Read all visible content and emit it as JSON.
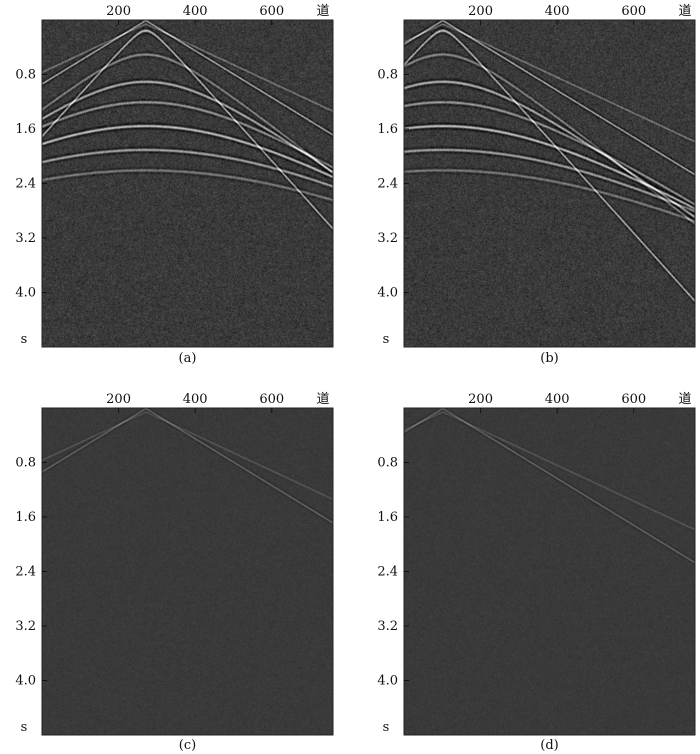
{
  "chart_data": [
    {
      "type": "heatmap",
      "panel_label": "(a)",
      "xlabel": "道",
      "ylabel": "s",
      "x_ticks": [
        200,
        400,
        600
      ],
      "y_ticks": [
        0.8,
        1.6,
        2.4,
        3.2,
        4.0
      ],
      "xlim": [
        0,
        760
      ],
      "ylim": [
        0,
        4.8
      ],
      "apex_trace": 270,
      "events": "strong hyperbolic reflections with linear noise",
      "colormap": "grayscale"
    },
    {
      "type": "heatmap",
      "panel_label": "(b)",
      "xlabel": "道",
      "ylabel": "s",
      "x_ticks": [
        200,
        400,
        600
      ],
      "y_ticks": [
        0.8,
        1.6,
        2.4,
        3.2,
        4.0
      ],
      "xlim": [
        0,
        760
      ],
      "ylim": [
        0,
        4.8
      ],
      "apex_trace": 100,
      "events": "strong hyperbolic reflections with linear noise",
      "colormap": "grayscale"
    },
    {
      "type": "heatmap",
      "panel_label": "(c)",
      "xlabel": "道",
      "ylabel": "s",
      "x_ticks": [
        200,
        400,
        600
      ],
      "y_ticks": [
        0.8,
        1.6,
        2.4,
        3.2,
        4.0
      ],
      "xlim": [
        0,
        760
      ],
      "ylim": [
        0,
        4.8
      ],
      "apex_trace": 270,
      "events": "weak residual linear noise",
      "colormap": "grayscale"
    },
    {
      "type": "heatmap",
      "panel_label": "(d)",
      "xlabel": "道",
      "ylabel": "s",
      "x_ticks": [
        200,
        400,
        600
      ],
      "y_ticks": [
        0.8,
        1.6,
        2.4,
        3.2,
        4.0
      ],
      "xlim": [
        0,
        760
      ],
      "ylim": [
        0,
        4.8
      ],
      "apex_trace": 100,
      "events": "weak residual linear noise",
      "colormap": "grayscale"
    }
  ]
}
